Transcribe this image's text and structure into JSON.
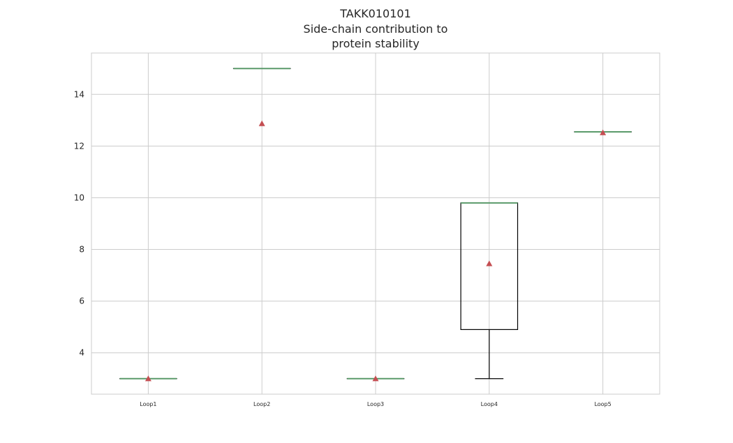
{
  "chart_data": {
    "type": "box",
    "title_lines": [
      "TAKK010101",
      "Side-chain contribution to",
      "protein stability"
    ],
    "xlabel": "",
    "ylabel": "",
    "ylim": [
      2.4,
      15.6
    ],
    "yticks": [
      "4",
      "6",
      "8",
      "10",
      "12",
      "14"
    ],
    "grid": true,
    "categories": [
      "Loop1",
      "Loop2",
      "Loop3",
      "Loop4",
      "Loop5"
    ],
    "boxes": [
      {
        "label": "Loop1",
        "whisker_low": 3.0,
        "q1": 3.0,
        "median": 3.0,
        "q3": 3.0,
        "whisker_high": 3.0,
        "mean": 3.0
      },
      {
        "label": "Loop2",
        "whisker_low": 15.0,
        "q1": 15.0,
        "median": 15.0,
        "q3": 15.0,
        "whisker_high": 15.0,
        "mean": 12.87
      },
      {
        "label": "Loop3",
        "whisker_low": 3.0,
        "q1": 3.0,
        "median": 3.0,
        "q3": 3.0,
        "whisker_high": 3.0,
        "mean": 3.0
      },
      {
        "label": "Loop4",
        "whisker_low": 3.0,
        "q1": 4.9,
        "median": 9.8,
        "q3": 9.8,
        "whisker_high": 9.8,
        "mean": 7.45
      },
      {
        "label": "Loop5",
        "whisker_low": 12.55,
        "q1": 12.55,
        "median": 12.55,
        "q3": 12.55,
        "whisker_high": 12.55,
        "mean": 12.52
      }
    ],
    "colors": {
      "median": "#5a9a6a",
      "mean_marker": "#c44e52",
      "box": "#000000",
      "grid": "#cccccc",
      "spine": "#cccccc"
    }
  }
}
